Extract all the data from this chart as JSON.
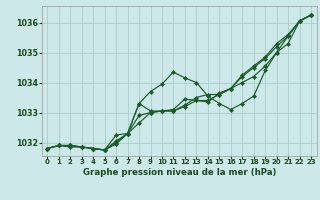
{
  "xlabel": "Graphe pression niveau de la mer (hPa)",
  "background_color": "#cce8e8",
  "grid_color": "#aacccc",
  "line_color": "#1a5c28",
  "xlim": [
    -0.5,
    23.5
  ],
  "ylim": [
    1031.55,
    1036.55
  ],
  "yticks": [
    1032,
    1033,
    1034,
    1035,
    1036
  ],
  "xticks": [
    0,
    1,
    2,
    3,
    4,
    5,
    6,
    7,
    8,
    9,
    10,
    11,
    12,
    13,
    14,
    15,
    16,
    17,
    18,
    19,
    20,
    21,
    22,
    23
  ],
  "line1": [
    1031.8,
    1031.9,
    1031.9,
    1031.85,
    1031.8,
    1031.75,
    1031.95,
    1032.3,
    1032.65,
    1033.0,
    1033.05,
    1033.05,
    1033.25,
    1033.5,
    1033.6,
    1033.6,
    1033.8,
    1034.0,
    1034.2,
    1034.55,
    1035.0,
    1035.3,
    1036.05,
    1036.25
  ],
  "line2": [
    1031.8,
    1031.9,
    1031.85,
    1031.85,
    1031.8,
    1031.75,
    1032.25,
    1032.3,
    1033.3,
    1033.05,
    1033.05,
    1033.1,
    1033.45,
    1033.4,
    1033.35,
    1033.65,
    1033.8,
    1034.25,
    1034.55,
    1034.85,
    1035.3,
    1035.6,
    1036.05,
    1036.25
  ],
  "line3": [
    1031.8,
    1031.9,
    1031.9,
    1031.85,
    1031.8,
    1031.75,
    1032.0,
    1032.3,
    1033.3,
    1033.7,
    1033.95,
    1034.35,
    1034.15,
    1034.0,
    1033.55,
    1033.3,
    1033.1,
    1033.3,
    1033.55,
    1034.4,
    1035.0,
    1035.55,
    1036.05,
    1036.25
  ],
  "line4": [
    1031.8,
    1031.9,
    1031.9,
    1031.85,
    1031.8,
    1031.75,
    1032.05,
    1032.3,
    1032.9,
    1033.0,
    1033.05,
    1033.05,
    1033.2,
    1033.4,
    1033.4,
    1033.6,
    1033.8,
    1034.2,
    1034.5,
    1034.8,
    1035.2,
    1035.55,
    1036.05,
    1036.25
  ]
}
